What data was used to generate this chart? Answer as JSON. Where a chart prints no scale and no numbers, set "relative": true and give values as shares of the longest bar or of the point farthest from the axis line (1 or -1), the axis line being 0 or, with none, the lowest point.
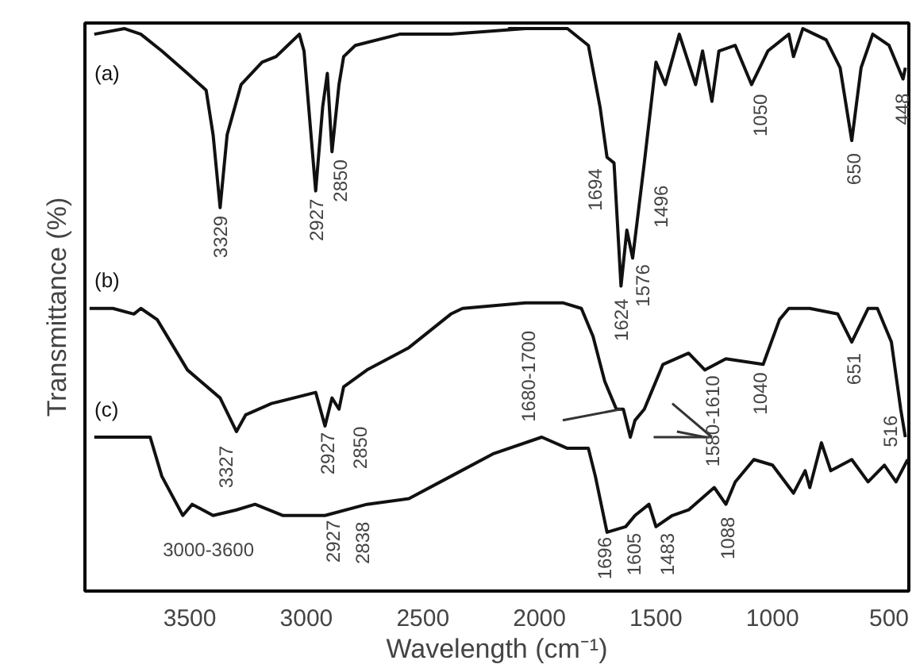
{
  "chart_data": {
    "type": "line",
    "relative": true,
    "xlabel": "Wavelength (cm⁻¹)",
    "ylabel": "Transmittance (%)",
    "xlim": [
      3950,
      415
    ],
    "xticks": [
      3500,
      3000,
      2500,
      2000,
      1500,
      1000,
      500
    ],
    "grid": false,
    "tick_labels": "x",
    "marker": "none",
    "line_style": "solid",
    "series": [
      {
        "name": "(a)",
        "color": "#111111",
        "x": [
          3910,
          3780,
          3710,
          3620,
          3510,
          3430,
          3400,
          3370,
          3340,
          3280,
          3190,
          3130,
          3080,
          3030,
          3010,
          2960,
          2930,
          2910,
          2890,
          2860,
          2840,
          2790,
          2600,
          2380,
          2060,
          2130,
          1880,
          1790,
          1740,
          1710,
          1680,
          1650,
          1625,
          1600,
          1550,
          1500,
          1460,
          1400,
          1330,
          1300,
          1260,
          1230,
          1160,
          1090,
          1020,
          930,
          910,
          870,
          770,
          710,
          660,
          620,
          570,
          500,
          440,
          430
        ],
        "values": [
          0.99,
          1.0,
          0.99,
          0.96,
          0.92,
          0.89,
          0.81,
          0.68,
          0.81,
          0.9,
          0.94,
          0.95,
          0.97,
          0.99,
          0.96,
          0.71,
          0.86,
          0.92,
          0.78,
          0.9,
          0.95,
          0.97,
          0.99,
          0.99,
          1.0,
          1.0,
          1.0,
          0.97,
          0.86,
          0.77,
          0.76,
          0.54,
          0.64,
          0.59,
          0.76,
          0.94,
          0.9,
          0.99,
          0.9,
          0.96,
          0.87,
          0.96,
          0.97,
          0.9,
          0.96,
          0.99,
          0.95,
          1.0,
          0.98,
          0.93,
          0.8,
          0.93,
          0.99,
          0.97,
          0.91,
          0.93
        ]
      },
      {
        "name": "(b)",
        "color": "#111111",
        "x": [
          3930,
          3830,
          3740,
          3710,
          3640,
          3510,
          3370,
          3300,
          3260,
          3150,
          2960,
          2920,
          2890,
          2860,
          2840,
          2740,
          2560,
          2380,
          2330,
          2060,
          1900,
          1820,
          1770,
          1720,
          1670,
          1640,
          1610,
          1590,
          1550,
          1530,
          1470,
          1360,
          1290,
          1200,
          1040,
          970,
          930,
          840,
          720,
          660,
          590,
          550,
          490,
          450,
          430
        ],
        "values": [
          0.5,
          0.5,
          0.49,
          0.5,
          0.48,
          0.39,
          0.34,
          0.28,
          0.31,
          0.33,
          0.35,
          0.29,
          0.34,
          0.32,
          0.36,
          0.39,
          0.43,
          0.49,
          0.5,
          0.51,
          0.51,
          0.5,
          0.45,
          0.37,
          0.32,
          0.32,
          0.27,
          0.3,
          0.32,
          0.34,
          0.4,
          0.42,
          0.39,
          0.41,
          0.4,
          0.48,
          0.5,
          0.5,
          0.49,
          0.44,
          0.5,
          0.5,
          0.44,
          0.32,
          0.27
        ]
      },
      {
        "name": "(c)",
        "color": "#111111",
        "x": [
          3910,
          3670,
          3620,
          3530,
          3490,
          3400,
          3300,
          3220,
          3100,
          2920,
          2740,
          2560,
          2380,
          2200,
          1990,
          1880,
          1790,
          1760,
          1710,
          1630,
          1590,
          1530,
          1500,
          1430,
          1360,
          1250,
          1200,
          1160,
          1080,
          1000,
          910,
          860,
          840,
          790,
          750,
          660,
          590,
          520,
          470,
          420
        ],
        "values": [
          0.27,
          0.27,
          0.2,
          0.13,
          0.15,
          0.13,
          0.14,
          0.15,
          0.13,
          0.13,
          0.15,
          0.16,
          0.2,
          0.24,
          0.27,
          0.25,
          0.25,
          0.2,
          0.1,
          0.11,
          0.13,
          0.15,
          0.11,
          0.13,
          0.14,
          0.18,
          0.15,
          0.19,
          0.23,
          0.22,
          0.17,
          0.21,
          0.18,
          0.26,
          0.21,
          0.23,
          0.19,
          0.22,
          0.19,
          0.23
        ]
      }
    ],
    "annotations": [
      "3000-3600",
      {
        "text": "3329",
        "x": 3370,
        "y": 0.68
      },
      {
        "text": "2927",
        "x": 2960,
        "y": 0.71
      },
      {
        "text": "2850",
        "x": 2890,
        "y": 0.78
      },
      {
        "text": "1694",
        "x": 1710,
        "y": 0.77
      },
      {
        "text": "1624",
        "x": 1650,
        "y": 0.54
      },
      {
        "text": "1576",
        "x": 1600,
        "y": 0.59
      },
      "1496",
      {
        "text": "1050",
        "x": 1090,
        "y": 0.9
      },
      {
        "text": "650",
        "x": 660,
        "y": 0.8
      },
      {
        "text": "448",
        "x": 440,
        "y": 0.91
      },
      {
        "text": "3327",
        "x": 3300,
        "y": 0.28
      },
      {
        "text": "2927",
        "x": 2960,
        "y": 0.29
      },
      {
        "text": "2850",
        "x": 2860,
        "y": 0.32
      },
      "1680-1700",
      "1580-1610",
      {
        "text": "1040",
        "x": 1040,
        "y": 0.4
      },
      {
        "text": "651",
        "x": 660,
        "y": 0.44
      },
      {
        "text": "516",
        "x": 450,
        "y": 0.32
      },
      {
        "text": "2927",
        "x": 2920,
        "y": 0.13
      },
      {
        "text": "2838",
        "x": 2740,
        "y": 0.15
      },
      {
        "text": "1696",
        "x": 1710,
        "y": 0.1
      },
      {
        "text": "1605",
        "x": 1630,
        "y": 0.11
      },
      {
        "text": "1483",
        "x": 1500,
        "y": 0.11
      },
      {
        "text": "1088",
        "x": 1200,
        "y": 0.15
      }
    ]
  }
}
